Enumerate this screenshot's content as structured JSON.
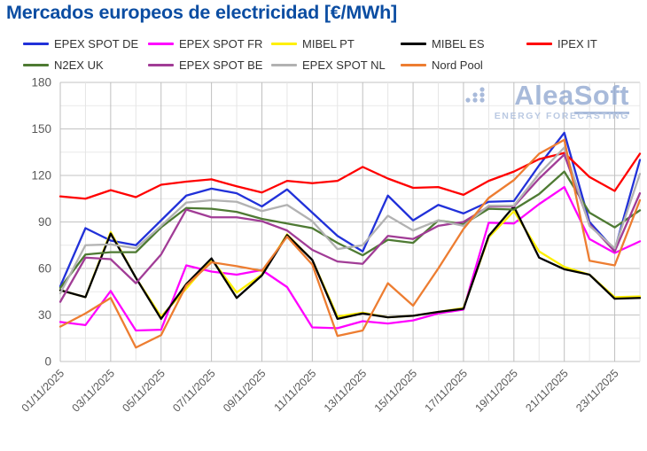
{
  "title": "Mercados europeos de electricidad [€/MWh]",
  "watermark": {
    "name_a": "Alea",
    "name_b": "Soft",
    "tagline": "ENERGY FORECASTING",
    "color": "#93AAD2"
  },
  "chart_data": {
    "type": "line",
    "title": "Mercados europeos de electricidad [€/MWh]",
    "ylim": [
      0,
      180
    ],
    "y_ticks": [
      0,
      30,
      60,
      90,
      120,
      150,
      180
    ],
    "y_minor_step": 15,
    "grid": true,
    "legend_position": "top",
    "x_count": 24,
    "x_tick_every": 2,
    "x_labels": [
      "01/11/2025",
      "03/11/2025",
      "05/11/2025",
      "07/11/2025",
      "09/11/2025",
      "11/11/2025",
      "13/11/2025",
      "15/11/2025",
      "17/11/2025",
      "19/11/2025",
      "21/11/2025",
      "23/11/2025"
    ],
    "series": [
      {
        "id": "epex-spot-de",
        "label": "EPEX SPOT DE",
        "color": "#2131D9",
        "values": [
          48.5,
          86,
          78,
          75,
          91,
          107,
          111.5,
          108.5,
          100,
          111,
          96,
          81,
          71,
          107,
          91,
          101,
          95.5,
          103,
          103.5,
          126.5,
          147.5,
          90,
          72,
          130
        ]
      },
      {
        "id": "epex-spot-fr",
        "label": "EPEX SPOT FR",
        "color": "#FF00FF",
        "values": [
          25.5,
          23.5,
          45.5,
          20,
          20.5,
          62,
          58,
          56,
          59,
          48,
          22,
          21.5,
          26,
          24.5,
          26.5,
          31,
          33.5,
          89.5,
          89,
          101.5,
          112.5,
          79,
          70,
          77.5
        ]
      },
      {
        "id": "mibel-pt",
        "label": "MIBEL PT",
        "color": "#FFF000",
        "values": [
          46,
          41.5,
          83.5,
          54,
          29,
          47,
          66,
          44.5,
          56,
          82,
          65.5,
          29,
          31.5,
          28.5,
          29.5,
          32,
          34.5,
          80,
          97,
          71,
          61,
          56,
          41.5,
          42
        ]
      },
      {
        "id": "mibel-es",
        "label": "MIBEL ES",
        "color": "#000000",
        "values": [
          46,
          41.5,
          82.5,
          54,
          27.5,
          50,
          66.5,
          41,
          55.5,
          81.5,
          65.5,
          27.5,
          31,
          28.5,
          29.5,
          32,
          34,
          81,
          100,
          67,
          59.5,
          56,
          40.5,
          41
        ]
      },
      {
        "id": "ipex-it",
        "label": "IPEX IT",
        "color": "#FF0000",
        "values": [
          106.5,
          105,
          110.5,
          106,
          114,
          116,
          117.5,
          113,
          109,
          116.5,
          115,
          116.5,
          125.5,
          118,
          112,
          112.5,
          107.5,
          116.5,
          122.5,
          130.5,
          134.5,
          119,
          110,
          134
        ]
      },
      {
        "id": "n2ex-uk",
        "label": "N2EX UK",
        "color": "#4E7A33",
        "values": [
          47.5,
          69,
          70.5,
          70.5,
          86.5,
          99,
          98.5,
          96.5,
          92,
          89,
          86,
          76.5,
          68.5,
          78.5,
          76.5,
          91,
          88.5,
          98.5,
          98,
          108,
          122.5,
          96,
          86.5,
          97.5
        ]
      },
      {
        "id": "epex-spot-be",
        "label": "EPEX SPOT BE",
        "color": "#A13C96",
        "values": [
          38.5,
          67,
          66,
          50.5,
          69,
          98,
          93,
          93,
          90.5,
          84.5,
          72,
          64.5,
          63,
          81,
          79,
          87.5,
          90,
          100,
          100,
          118,
          133.5,
          88.5,
          71,
          108.5
        ]
      },
      {
        "id": "epex-spot-nl",
        "label": "EPEX SPOT NL",
        "color": "#B2B2B2",
        "values": [
          44,
          75,
          75.5,
          73,
          87.5,
          102.5,
          104,
          103,
          97,
          101,
          90.5,
          72.5,
          75,
          94,
          84.5,
          91,
          87.5,
          100.5,
          100.5,
          121,
          138,
          87.5,
          73,
          121
        ]
      },
      {
        "id": "nord-pool",
        "label": "Nord Pool",
        "color": "#ED7D31",
        "values": [
          22.5,
          31,
          41,
          9,
          17,
          49,
          64,
          61.5,
          58.5,
          80.5,
          62.5,
          16.5,
          20,
          50.5,
          36,
          60,
          85.5,
          105.5,
          117,
          134,
          143,
          65,
          62,
          104
        ]
      }
    ]
  }
}
